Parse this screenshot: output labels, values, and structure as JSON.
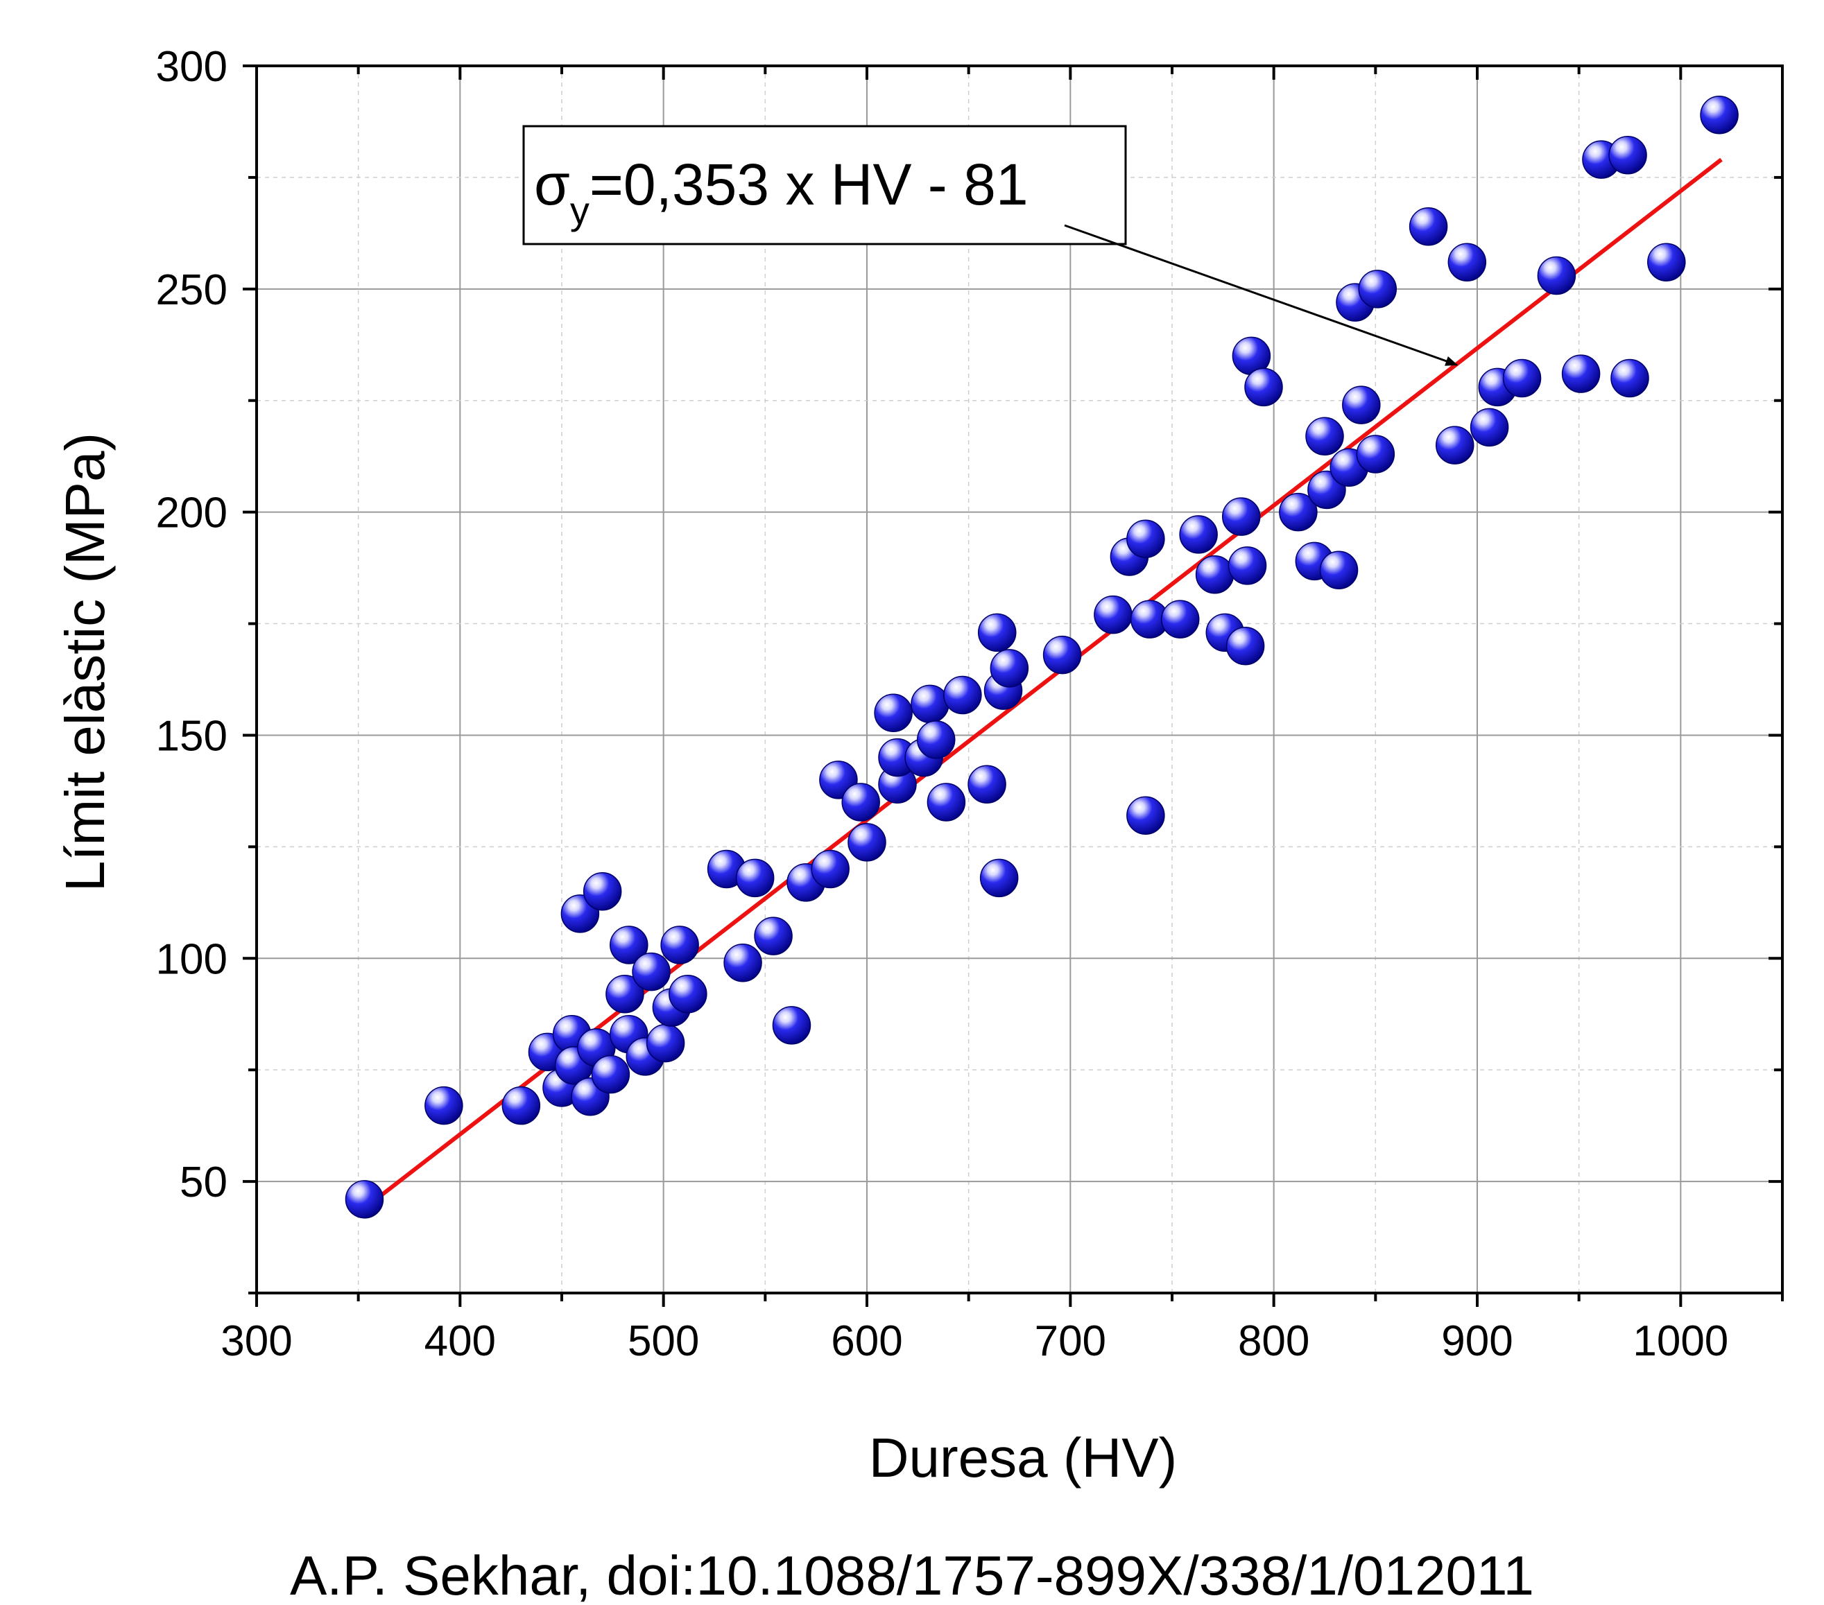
{
  "chart_data": {
    "type": "scatter",
    "xlabel": "Duresa (HV)",
    "ylabel": "Límit elàstic (MPa)",
    "xlim": [
      300,
      1050
    ],
    "ylim": [
      25,
      300
    ],
    "x_ticks": [
      300,
      400,
      500,
      600,
      700,
      800,
      900,
      1000
    ],
    "y_ticks": [
      50,
      100,
      150,
      200,
      250,
      300
    ],
    "grid": true,
    "points_color": "#1010e0",
    "fit_color": "#ee1111",
    "points": [
      {
        "x": 353,
        "y": 46
      },
      {
        "x": 392,
        "y": 67
      },
      {
        "x": 430,
        "y": 67
      },
      {
        "x": 443,
        "y": 79
      },
      {
        "x": 450,
        "y": 71
      },
      {
        "x": 455,
        "y": 83
      },
      {
        "x": 456,
        "y": 76
      },
      {
        "x": 459,
        "y": 110
      },
      {
        "x": 464,
        "y": 69
      },
      {
        "x": 467,
        "y": 80
      },
      {
        "x": 470,
        "y": 115
      },
      {
        "x": 474,
        "y": 74
      },
      {
        "x": 481,
        "y": 92
      },
      {
        "x": 483,
        "y": 103
      },
      {
        "x": 483,
        "y": 83
      },
      {
        "x": 491,
        "y": 78
      },
      {
        "x": 494,
        "y": 97
      },
      {
        "x": 501,
        "y": 81
      },
      {
        "x": 504,
        "y": 89
      },
      {
        "x": 508,
        "y": 103
      },
      {
        "x": 512,
        "y": 92
      },
      {
        "x": 531,
        "y": 120
      },
      {
        "x": 539,
        "y": 99
      },
      {
        "x": 545,
        "y": 118
      },
      {
        "x": 554,
        "y": 105
      },
      {
        "x": 563,
        "y": 85
      },
      {
        "x": 570,
        "y": 117
      },
      {
        "x": 582,
        "y": 120
      },
      {
        "x": 586,
        "y": 140
      },
      {
        "x": 597,
        "y": 135
      },
      {
        "x": 600,
        "y": 126
      },
      {
        "x": 613,
        "y": 155
      },
      {
        "x": 615,
        "y": 139
      },
      {
        "x": 615,
        "y": 145
      },
      {
        "x": 628,
        "y": 145
      },
      {
        "x": 631,
        "y": 157
      },
      {
        "x": 634,
        "y": 149
      },
      {
        "x": 639,
        "y": 135
      },
      {
        "x": 647,
        "y": 159
      },
      {
        "x": 659,
        "y": 139
      },
      {
        "x": 664,
        "y": 173
      },
      {
        "x": 665,
        "y": 118
      },
      {
        "x": 667,
        "y": 160
      },
      {
        "x": 670,
        "y": 165
      },
      {
        "x": 696,
        "y": 168
      },
      {
        "x": 721,
        "y": 177
      },
      {
        "x": 729,
        "y": 190
      },
      {
        "x": 737,
        "y": 194
      },
      {
        "x": 737,
        "y": 132
      },
      {
        "x": 739,
        "y": 176
      },
      {
        "x": 754,
        "y": 176
      },
      {
        "x": 763,
        "y": 195
      },
      {
        "x": 771,
        "y": 186
      },
      {
        "x": 776,
        "y": 173
      },
      {
        "x": 784,
        "y": 199
      },
      {
        "x": 786,
        "y": 170
      },
      {
        "x": 787,
        "y": 188
      },
      {
        "x": 789,
        "y": 235
      },
      {
        "x": 795,
        "y": 228
      },
      {
        "x": 812,
        "y": 200
      },
      {
        "x": 820,
        "y": 189
      },
      {
        "x": 825,
        "y": 217
      },
      {
        "x": 826,
        "y": 205
      },
      {
        "x": 832,
        "y": 187
      },
      {
        "x": 837,
        "y": 210
      },
      {
        "x": 840,
        "y": 247
      },
      {
        "x": 843,
        "y": 224
      },
      {
        "x": 850,
        "y": 213
      },
      {
        "x": 851,
        "y": 250
      },
      {
        "x": 876,
        "y": 264
      },
      {
        "x": 889,
        "y": 215
      },
      {
        "x": 895,
        "y": 256
      },
      {
        "x": 906,
        "y": 219
      },
      {
        "x": 910,
        "y": 228
      },
      {
        "x": 922,
        "y": 230
      },
      {
        "x": 939,
        "y": 253
      },
      {
        "x": 951,
        "y": 231
      },
      {
        "x": 961,
        "y": 279
      },
      {
        "x": 974,
        "y": 280
      },
      {
        "x": 975,
        "y": 230
      },
      {
        "x": 993,
        "y": 256
      },
      {
        "x": 1019,
        "y": 289
      }
    ],
    "fit_line": {
      "x": [
        353,
        1020
      ],
      "y": [
        44,
        279
      ]
    },
    "annotation": {
      "symbol": "σ",
      "subscript": "y",
      "equation": "=0,353 x HV - 81",
      "arrow_target": {
        "x": 890,
        "y": 233
      }
    }
  },
  "credit": "A.P. Sekhar, doi:10.1088/1757-899X/338/1/012011"
}
